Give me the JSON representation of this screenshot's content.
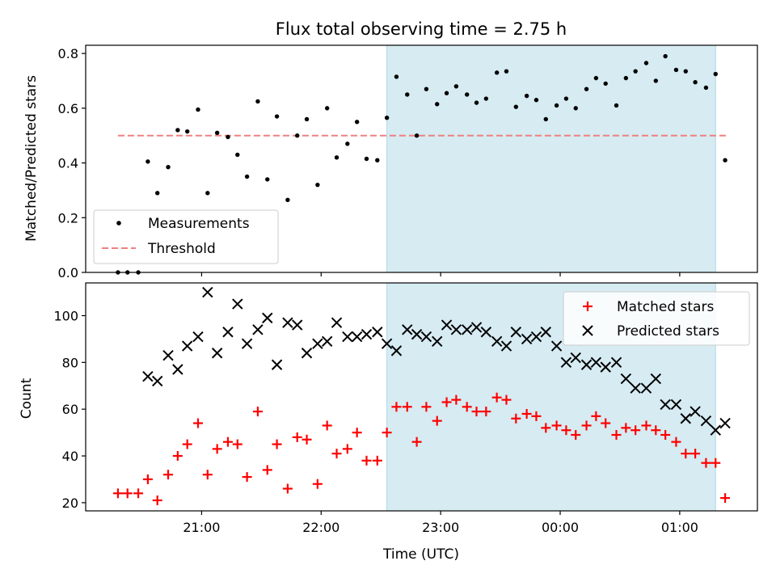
{
  "figure": {
    "title": "Flux total observing time = 2.75 h",
    "xlabel": "Time (UTC)",
    "colors": {
      "measurement": "#000000",
      "threshold": "#f08080",
      "matched": "#ff0000",
      "predicted": "#000000",
      "highlight": "#add8e6"
    }
  },
  "chart_data": [
    {
      "type": "scatter",
      "panel": "top",
      "title": "Flux total observing time = 2.75 h",
      "xlabel": "",
      "ylabel": "Matched/Predicted stars",
      "x_unit": "hours after 00:00 UTC",
      "xlim": [
        -3.97,
        1.65
      ],
      "ylim": [
        0,
        0.83
      ],
      "yticks": [
        0.0,
        0.2,
        0.4,
        0.6,
        0.8
      ],
      "ytick_labels": [
        "0.0",
        "0.2",
        "0.4",
        "0.6",
        "0.8"
      ],
      "highlight_span": [
        -1.45,
        1.3
      ],
      "legend": {
        "placement": "lower-left",
        "entries": [
          "Measurements",
          "Threshold"
        ]
      },
      "threshold": {
        "name": "Threshold",
        "y": 0.5,
        "x_range": [
          -3.7,
          1.4
        ]
      },
      "series": [
        {
          "name": "Measurements",
          "points": [
            [
              -3.7,
              0.0
            ],
            [
              -3.62,
              0.0
            ],
            [
              -3.53,
              0.0
            ],
            [
              -3.45,
              0.405
            ],
            [
              -3.37,
              0.29
            ],
            [
              -3.28,
              0.385
            ],
            [
              -3.2,
              0.52
            ],
            [
              -3.12,
              0.515
            ],
            [
              -3.03,
              0.595
            ],
            [
              -2.95,
              0.29
            ],
            [
              -2.87,
              0.51
            ],
            [
              -2.78,
              0.495
            ],
            [
              -2.7,
              0.43
            ],
            [
              -2.62,
              0.35
            ],
            [
              -2.53,
              0.625
            ],
            [
              -2.45,
              0.34
            ],
            [
              -2.37,
              0.57
            ],
            [
              -2.28,
              0.265
            ],
            [
              -2.2,
              0.5
            ],
            [
              -2.12,
              0.56
            ],
            [
              -2.03,
              0.32
            ],
            [
              -1.95,
              0.6
            ],
            [
              -1.87,
              0.42
            ],
            [
              -1.78,
              0.47
            ],
            [
              -1.7,
              0.55
            ],
            [
              -1.62,
              0.415
            ],
            [
              -1.53,
              0.41
            ],
            [
              -1.45,
              0.565
            ],
            [
              -1.37,
              0.715
            ],
            [
              -1.28,
              0.65
            ],
            [
              -1.2,
              0.5
            ],
            [
              -1.12,
              0.67
            ],
            [
              -1.03,
              0.615
            ],
            [
              -0.95,
              0.655
            ],
            [
              -0.87,
              0.68
            ],
            [
              -0.78,
              0.65
            ],
            [
              -0.7,
              0.62
            ],
            [
              -0.62,
              0.635
            ],
            [
              -0.53,
              0.73
            ],
            [
              -0.45,
              0.735
            ],
            [
              -0.37,
              0.605
            ],
            [
              -0.28,
              0.645
            ],
            [
              -0.2,
              0.63
            ],
            [
              -0.12,
              0.56
            ],
            [
              -0.03,
              0.61
            ],
            [
              0.05,
              0.635
            ],
            [
              0.13,
              0.6
            ],
            [
              0.22,
              0.67
            ],
            [
              0.3,
              0.71
            ],
            [
              0.38,
              0.69
            ],
            [
              0.47,
              0.61
            ],
            [
              0.55,
              0.71
            ],
            [
              0.63,
              0.735
            ],
            [
              0.72,
              0.765
            ],
            [
              0.8,
              0.7
            ],
            [
              0.88,
              0.79
            ],
            [
              0.97,
              0.74
            ],
            [
              1.05,
              0.735
            ],
            [
              1.13,
              0.695
            ],
            [
              1.22,
              0.675
            ],
            [
              1.3,
              0.725
            ],
            [
              1.38,
              0.41
            ]
          ]
        }
      ]
    },
    {
      "type": "scatter",
      "panel": "bottom",
      "xlabel": "Time (UTC)",
      "ylabel": "Count",
      "x_unit": "hours after 00:00 UTC",
      "xlim": [
        -3.97,
        1.65
      ],
      "ylim": [
        16.5,
        114
      ],
      "xticks": [
        -3,
        -2,
        -1,
        0,
        1
      ],
      "xtick_labels": [
        "21:00",
        "22:00",
        "23:00",
        "00:00",
        "01:00"
      ],
      "yticks": [
        20,
        40,
        60,
        80,
        100
      ],
      "ytick_labels": [
        "20",
        "40",
        "60",
        "80",
        "100"
      ],
      "highlight_span": [
        -1.45,
        1.3
      ],
      "legend": {
        "placement": "upper-right",
        "entries": [
          "Matched stars",
          "Predicted stars"
        ]
      },
      "series": [
        {
          "name": "Matched stars",
          "marker": "plus",
          "points": [
            [
              -3.7,
              24
            ],
            [
              -3.62,
              24
            ],
            [
              -3.53,
              24
            ],
            [
              -3.45,
              30
            ],
            [
              -3.37,
              21
            ],
            [
              -3.28,
              32
            ],
            [
              -3.2,
              40
            ],
            [
              -3.12,
              45
            ],
            [
              -3.03,
              54
            ],
            [
              -2.95,
              32
            ],
            [
              -2.87,
              43
            ],
            [
              -2.78,
              46
            ],
            [
              -2.7,
              45
            ],
            [
              -2.62,
              31
            ],
            [
              -2.53,
              59
            ],
            [
              -2.45,
              34
            ],
            [
              -2.37,
              45
            ],
            [
              -2.28,
              26
            ],
            [
              -2.2,
              48
            ],
            [
              -2.12,
              47
            ],
            [
              -2.03,
              28
            ],
            [
              -1.95,
              53
            ],
            [
              -1.87,
              41
            ],
            [
              -1.78,
              43
            ],
            [
              -1.7,
              50
            ],
            [
              -1.62,
              38
            ],
            [
              -1.53,
              38
            ],
            [
              -1.45,
              50
            ],
            [
              -1.37,
              61
            ],
            [
              -1.28,
              61
            ],
            [
              -1.2,
              46
            ],
            [
              -1.12,
              61
            ],
            [
              -1.03,
              55
            ],
            [
              -0.95,
              63
            ],
            [
              -0.87,
              64
            ],
            [
              -0.78,
              61
            ],
            [
              -0.7,
              59
            ],
            [
              -0.62,
              59
            ],
            [
              -0.53,
              65
            ],
            [
              -0.45,
              64
            ],
            [
              -0.37,
              56
            ],
            [
              -0.28,
              58
            ],
            [
              -0.2,
              57
            ],
            [
              -0.12,
              52
            ],
            [
              -0.03,
              53
            ],
            [
              0.05,
              51
            ],
            [
              0.13,
              49
            ],
            [
              0.22,
              53
            ],
            [
              0.3,
              57
            ],
            [
              0.38,
              54
            ],
            [
              0.47,
              49
            ],
            [
              0.55,
              52
            ],
            [
              0.63,
              51
            ],
            [
              0.72,
              53
            ],
            [
              0.8,
              51
            ],
            [
              0.88,
              49
            ],
            [
              0.97,
              46
            ],
            [
              1.05,
              41
            ],
            [
              1.13,
              41
            ],
            [
              1.22,
              37
            ],
            [
              1.3,
              37
            ],
            [
              1.38,
              22
            ]
          ]
        },
        {
          "name": "Predicted stars",
          "marker": "x",
          "points": [
            [
              -3.45,
              74
            ],
            [
              -3.37,
              72
            ],
            [
              -3.28,
              83
            ],
            [
              -3.2,
              77
            ],
            [
              -3.12,
              87
            ],
            [
              -3.03,
              91
            ],
            [
              -2.95,
              110
            ],
            [
              -2.87,
              84
            ],
            [
              -2.78,
              93
            ],
            [
              -2.7,
              105
            ],
            [
              -2.62,
              88
            ],
            [
              -2.53,
              94
            ],
            [
              -2.45,
              99
            ],
            [
              -2.37,
              79
            ],
            [
              -2.28,
              97
            ],
            [
              -2.2,
              96
            ],
            [
              -2.12,
              84
            ],
            [
              -2.03,
              88
            ],
            [
              -1.95,
              89
            ],
            [
              -1.87,
              97
            ],
            [
              -1.78,
              91
            ],
            [
              -1.7,
              91
            ],
            [
              -1.62,
              92
            ],
            [
              -1.53,
              93
            ],
            [
              -1.45,
              88
            ],
            [
              -1.37,
              85
            ],
            [
              -1.28,
              94
            ],
            [
              -1.2,
              92
            ],
            [
              -1.12,
              91
            ],
            [
              -1.03,
              89
            ],
            [
              -0.95,
              96
            ],
            [
              -0.87,
              94
            ],
            [
              -0.78,
              94
            ],
            [
              -0.7,
              95
            ],
            [
              -0.62,
              93
            ],
            [
              -0.53,
              89
            ],
            [
              -0.45,
              87
            ],
            [
              -0.37,
              93
            ],
            [
              -0.28,
              90
            ],
            [
              -0.2,
              91
            ],
            [
              -0.12,
              93
            ],
            [
              -0.03,
              87
            ],
            [
              0.05,
              80
            ],
            [
              0.13,
              82
            ],
            [
              0.22,
              79
            ],
            [
              0.3,
              80
            ],
            [
              0.38,
              78
            ],
            [
              0.47,
              80
            ],
            [
              0.55,
              73
            ],
            [
              0.63,
              69
            ],
            [
              0.72,
              69
            ],
            [
              0.8,
              73
            ],
            [
              0.88,
              62
            ],
            [
              0.97,
              62
            ],
            [
              1.05,
              56
            ],
            [
              1.13,
              59
            ],
            [
              1.22,
              55
            ],
            [
              1.3,
              51
            ],
            [
              1.38,
              54
            ]
          ]
        }
      ]
    }
  ]
}
